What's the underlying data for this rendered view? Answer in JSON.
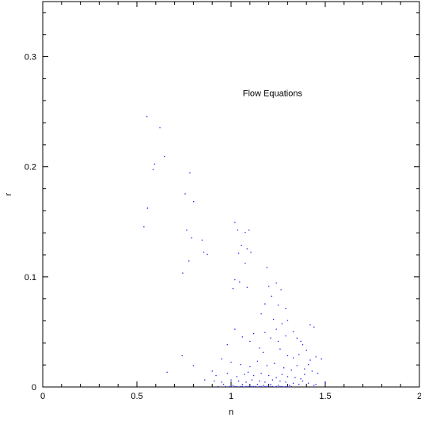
{
  "chart_data": {
    "type": "scatter",
    "title": "",
    "xlabel": "n",
    "ylabel": "r",
    "xlim": [
      0,
      2
    ],
    "ylim": [
      0,
      0.35
    ],
    "xticks": [
      {
        "value": 0,
        "label": "0"
      },
      {
        "value": 0.5,
        "label": "0.5"
      },
      {
        "value": 1,
        "label": "1"
      },
      {
        "value": 1.5,
        "label": "1.5"
      },
      {
        "value": 2,
        "label": "2"
      }
    ],
    "yticks": [
      {
        "value": 0,
        "label": "0"
      },
      {
        "value": 0.1,
        "label": "0.1"
      },
      {
        "value": 0.2,
        "label": "0.2"
      },
      {
        "value": 0.3,
        "label": "0.3"
      }
    ],
    "grid": false,
    "annotations": [
      {
        "text": "Flow Equations",
        "x": 1.22,
        "y": 0.264
      }
    ],
    "series": [
      {
        "color": "#1a1aff",
        "marker": "dot",
        "points": [
          [
            0.553,
            0.245
          ],
          [
            0.622,
            0.235
          ],
          [
            0.594,
            0.202
          ],
          [
            0.586,
            0.197
          ],
          [
            0.646,
            0.209
          ],
          [
            0.556,
            0.162
          ],
          [
            0.537,
            0.145
          ],
          [
            0.781,
            0.194
          ],
          [
            0.756,
            0.175
          ],
          [
            0.801,
            0.168
          ],
          [
            0.764,
            0.142
          ],
          [
            0.79,
            0.135
          ],
          [
            0.776,
            0.114
          ],
          [
            0.743,
            0.103
          ],
          [
            0.846,
            0.133
          ],
          [
            0.855,
            0.122
          ],
          [
            0.874,
            0.12
          ],
          [
            1.02,
            0.149
          ],
          [
            1.035,
            0.142
          ],
          [
            1.075,
            0.14
          ],
          [
            1.095,
            0.142
          ],
          [
            1.055,
            0.128
          ],
          [
            1.085,
            0.125
          ],
          [
            1.105,
            0.122
          ],
          [
            1.04,
            0.121
          ],
          [
            1.075,
            0.112
          ],
          [
            1.02,
            0.097
          ],
          [
            1.045,
            0.095
          ],
          [
            1.085,
            0.09
          ],
          [
            1.01,
            0.089
          ],
          [
            1.19,
            0.108
          ],
          [
            1.2,
            0.091
          ],
          [
            1.24,
            0.094
          ],
          [
            1.215,
            0.082
          ],
          [
            1.265,
            0.088
          ],
          [
            1.29,
            0.071
          ],
          [
            1.25,
            0.074
          ],
          [
            1.18,
            0.075
          ],
          [
            1.16,
            0.066
          ],
          [
            1.225,
            0.061
          ],
          [
            1.27,
            0.057
          ],
          [
            1.3,
            0.06
          ],
          [
            1.24,
            0.052
          ],
          [
            1.18,
            0.049
          ],
          [
            1.21,
            0.044
          ],
          [
            1.25,
            0.041
          ],
          [
            1.29,
            0.046
          ],
          [
            1.33,
            0.05
          ],
          [
            1.35,
            0.044
          ],
          [
            1.37,
            0.041
          ],
          [
            1.42,
            0.056
          ],
          [
            1.44,
            0.054
          ],
          [
            1.38,
            0.038
          ],
          [
            1.4,
            0.033
          ],
          [
            1.12,
            0.048
          ],
          [
            1.1,
            0.041
          ],
          [
            1.06,
            0.045
          ],
          [
            1.02,
            0.052
          ],
          [
            0.98,
            0.038
          ],
          [
            1.15,
            0.035
          ],
          [
            1.17,
            0.031
          ],
          [
            1.26,
            0.034
          ],
          [
            1.3,
            0.028
          ],
          [
            1.33,
            0.026
          ],
          [
            1.36,
            0.029
          ],
          [
            1.42,
            0.024
          ],
          [
            1.45,
            0.027
          ],
          [
            1.48,
            0.025
          ],
          [
            0.74,
            0.028
          ],
          [
            0.8,
            0.019
          ],
          [
            0.66,
            0.013
          ],
          [
            0.95,
            0.025
          ],
          [
            1.0,
            0.022
          ],
          [
            1.05,
            0.02
          ],
          [
            1.1,
            0.018
          ],
          [
            1.14,
            0.023
          ],
          [
            1.19,
            0.019
          ],
          [
            1.23,
            0.021
          ],
          [
            1.28,
            0.017
          ],
          [
            1.32,
            0.015
          ],
          [
            1.35,
            0.019
          ],
          [
            1.39,
            0.016
          ],
          [
            1.41,
            0.02
          ],
          [
            1.43,
            0.014
          ],
          [
            1.46,
            0.012
          ],
          [
            1.39,
            0.011
          ],
          [
            0.9,
            0.014
          ],
          [
            0.92,
            0.01
          ],
          [
            0.98,
            0.012
          ],
          [
            1.03,
            0.009
          ],
          [
            1.07,
            0.011
          ],
          [
            1.09,
            0.013
          ],
          [
            1.12,
            0.01
          ],
          [
            1.16,
            0.012
          ],
          [
            1.2,
            0.01
          ],
          [
            1.24,
            0.008
          ],
          [
            1.27,
            0.011
          ],
          [
            1.3,
            0.009
          ],
          [
            1.34,
            0.008
          ],
          [
            1.37,
            0.007
          ],
          [
            0.86,
            0.006
          ],
          [
            0.91,
            0.005
          ],
          [
            0.95,
            0.004
          ],
          [
            1.0,
            0.006
          ],
          [
            1.04,
            0.005
          ],
          [
            1.08,
            0.004
          ],
          [
            1.11,
            0.006
          ],
          [
            1.15,
            0.005
          ],
          [
            1.18,
            0.004
          ],
          [
            1.22,
            0.006
          ],
          [
            1.26,
            0.005
          ],
          [
            1.29,
            0.004
          ],
          [
            1.33,
            0.003
          ],
          [
            1.38,
            0.005
          ],
          [
            1.41,
            0.003
          ],
          [
            1.45,
            0.002
          ],
          [
            1.5,
            0.003
          ],
          [
            0.96,
            0.002
          ],
          [
            1.01,
            0.001
          ],
          [
            1.06,
            0.002
          ],
          [
            1.1,
            0.001
          ],
          [
            1.14,
            0.002
          ],
          [
            1.17,
            0.001
          ],
          [
            1.21,
            0.002
          ],
          [
            1.25,
            0.001
          ],
          [
            1.31,
            0.001
          ],
          [
            1.36,
            0.002
          ],
          [
            1.44,
            0.001
          ],
          [
            0.99,
            0.0
          ],
          [
            1.02,
            0.0
          ],
          [
            1.05,
            0.0
          ],
          [
            1.08,
            0.0
          ],
          [
            1.11,
            0.0
          ],
          [
            1.13,
            0.0
          ],
          [
            1.16,
            0.0
          ],
          [
            1.19,
            0.0
          ],
          [
            1.22,
            0.0
          ],
          [
            1.24,
            0.0
          ],
          [
            1.27,
            0.0
          ],
          [
            1.3,
            0.0
          ],
          [
            1.0,
            0.0
          ],
          [
            1.03,
            0.0
          ],
          [
            1.06,
            0.0
          ],
          [
            1.09,
            0.0
          ],
          [
            1.12,
            0.0
          ],
          [
            1.15,
            0.0
          ],
          [
            1.18,
            0.0
          ],
          [
            1.21,
            0.0
          ],
          [
            1.26,
            0.0
          ],
          [
            1.29,
            0.0
          ],
          [
            1.32,
            0.0
          ],
          [
            0.93,
            0.0
          ],
          [
            0.97,
            0.0
          ]
        ]
      }
    ]
  }
}
